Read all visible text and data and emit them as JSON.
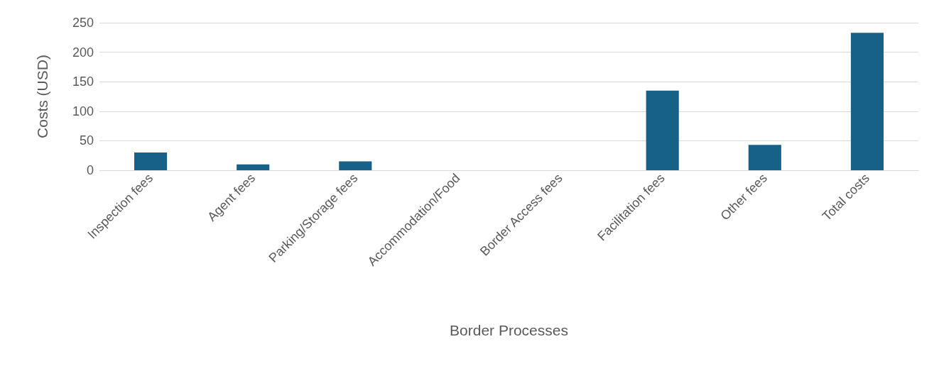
{
  "chart_data": {
    "type": "bar",
    "xlabel": "Border Processes",
    "ylabel": "Costs (USD)",
    "categories": [
      "Inspection fees",
      "Agent fees",
      "Parking/Storage fees",
      "Accommodation/Food",
      "Border Access fees",
      "Facilitation fees",
      "Other fees",
      "Total costs"
    ],
    "values": [
      30,
      10,
      15,
      0,
      0,
      135,
      43,
      233
    ],
    "color": "#176087",
    "ylim": [
      0,
      250
    ],
    "yticks": [
      0,
      50,
      100,
      150,
      200,
      250
    ],
    "grid": "y"
  }
}
